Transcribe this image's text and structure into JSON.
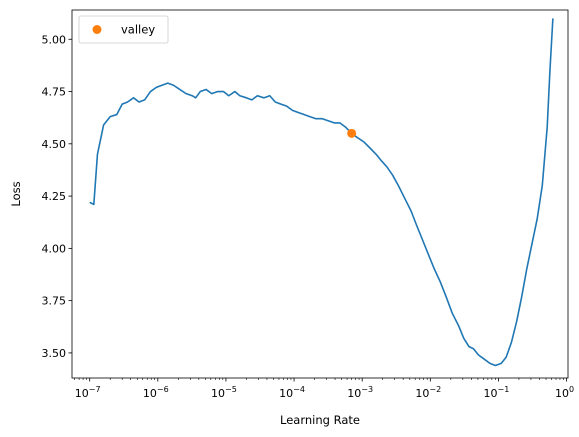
{
  "chart_data": {
    "type": "line",
    "xlabel": "Learning Rate",
    "ylabel": "Loss",
    "xscale": "log",
    "xlim": [
      5.5e-08,
      1.05
    ],
    "ylim": [
      3.38,
      5.14
    ],
    "grid": false,
    "legend": {
      "placement": "top-left",
      "entries": [
        {
          "label": "valley",
          "marker": "circle",
          "color": "#ff7f0e"
        }
      ]
    },
    "x_ticks": [
      {
        "value": 1e-07,
        "base": "10",
        "exp": "−7"
      },
      {
        "value": 1e-06,
        "base": "10",
        "exp": "−6"
      },
      {
        "value": 1e-05,
        "base": "10",
        "exp": "−5"
      },
      {
        "value": 0.0001,
        "base": "10",
        "exp": "−4"
      },
      {
        "value": 0.001,
        "base": "10",
        "exp": "−3"
      },
      {
        "value": 0.01,
        "base": "10",
        "exp": "−2"
      },
      {
        "value": 0.1,
        "base": "10",
        "exp": "−1"
      },
      {
        "value": 1,
        "base": "10",
        "exp": "0"
      }
    ],
    "y_ticks": [
      {
        "value": 3.5,
        "label": "3.50"
      },
      {
        "value": 3.75,
        "label": "3.75"
      },
      {
        "value": 4.0,
        "label": "4.00"
      },
      {
        "value": 4.25,
        "label": "4.25"
      },
      {
        "value": 4.5,
        "label": "4.50"
      },
      {
        "value": 4.75,
        "label": "4.75"
      },
      {
        "value": 5.0,
        "label": "5.00"
      }
    ],
    "series": [
      {
        "color": "#1f77b4",
        "points": [
          [
            1e-07,
            4.22
          ],
          [
            1.15e-07,
            4.21
          ],
          [
            1.3e-07,
            4.45
          ],
          [
            1.6e-07,
            4.59
          ],
          [
            2e-07,
            4.63
          ],
          [
            2.5e-07,
            4.64
          ],
          [
            3e-07,
            4.69
          ],
          [
            3.6e-07,
            4.7
          ],
          [
            4.4e-07,
            4.72
          ],
          [
            5.3e-07,
            4.7
          ],
          [
            6.4e-07,
            4.71
          ],
          [
            7.8e-07,
            4.75
          ],
          [
            9.5e-07,
            4.77
          ],
          [
            1.15e-06,
            4.78
          ],
          [
            1.4e-06,
            4.79
          ],
          [
            1.7e-06,
            4.78
          ],
          [
            2.1e-06,
            4.76
          ],
          [
            2.6e-06,
            4.74
          ],
          [
            3.2e-06,
            4.73
          ],
          [
            3.6e-06,
            4.72
          ],
          [
            4.2e-06,
            4.75
          ],
          [
            5.1e-06,
            4.76
          ],
          [
            6.2e-06,
            4.74
          ],
          [
            7.6e-06,
            4.75
          ],
          [
            9.2e-06,
            4.75
          ],
          [
            1.1e-05,
            4.73
          ],
          [
            1.35e-05,
            4.75
          ],
          [
            1.6e-05,
            4.73
          ],
          [
            2e-05,
            4.72
          ],
          [
            2.4e-05,
            4.71
          ],
          [
            2.9e-05,
            4.73
          ],
          [
            3.6e-05,
            4.72
          ],
          [
            4.4e-05,
            4.73
          ],
          [
            5.3e-05,
            4.7
          ],
          [
            6.4e-05,
            4.69
          ],
          [
            7.8e-05,
            4.68
          ],
          [
            9.5e-05,
            4.66
          ],
          [
            0.000115,
            4.65
          ],
          [
            0.00014,
            4.64
          ],
          [
            0.00017,
            4.63
          ],
          [
            0.00021,
            4.62
          ],
          [
            0.00026,
            4.62
          ],
          [
            0.00032,
            4.61
          ],
          [
            0.00039,
            4.6
          ],
          [
            0.00047,
            4.6
          ],
          [
            0.00057,
            4.58
          ],
          [
            0.0007,
            4.55
          ],
          [
            0.00085,
            4.53
          ],
          [
            0.00105,
            4.51
          ],
          [
            0.0013,
            4.48
          ],
          [
            0.0016,
            4.45
          ],
          [
            0.0019,
            4.42
          ],
          [
            0.0023,
            4.39
          ],
          [
            0.0028,
            4.35
          ],
          [
            0.0034,
            4.3
          ],
          [
            0.0042,
            4.24
          ],
          [
            0.0052,
            4.18
          ],
          [
            0.0063,
            4.11
          ],
          [
            0.0077,
            4.04
          ],
          [
            0.0094,
            3.97
          ],
          [
            0.0115,
            3.9
          ],
          [
            0.014,
            3.84
          ],
          [
            0.017,
            3.77
          ],
          [
            0.021,
            3.69
          ],
          [
            0.026,
            3.63
          ],
          [
            0.031,
            3.57
          ],
          [
            0.037,
            3.53
          ],
          [
            0.043,
            3.52
          ],
          [
            0.051,
            3.49
          ],
          [
            0.062,
            3.47
          ],
          [
            0.075,
            3.45
          ],
          [
            0.09,
            3.44
          ],
          [
            0.11,
            3.45
          ],
          [
            0.13,
            3.48
          ],
          [
            0.155,
            3.55
          ],
          [
            0.185,
            3.65
          ],
          [
            0.22,
            3.77
          ],
          [
            0.26,
            3.9
          ],
          [
            0.31,
            4.02
          ],
          [
            0.37,
            4.14
          ],
          [
            0.44,
            4.3
          ],
          [
            0.52,
            4.58
          ],
          [
            0.57,
            4.85
          ],
          [
            0.63,
            5.1
          ]
        ]
      }
    ],
    "markers": [
      {
        "label": "valley",
        "x": 0.0007,
        "y": 4.55,
        "color": "#ff7f0e"
      }
    ]
  }
}
